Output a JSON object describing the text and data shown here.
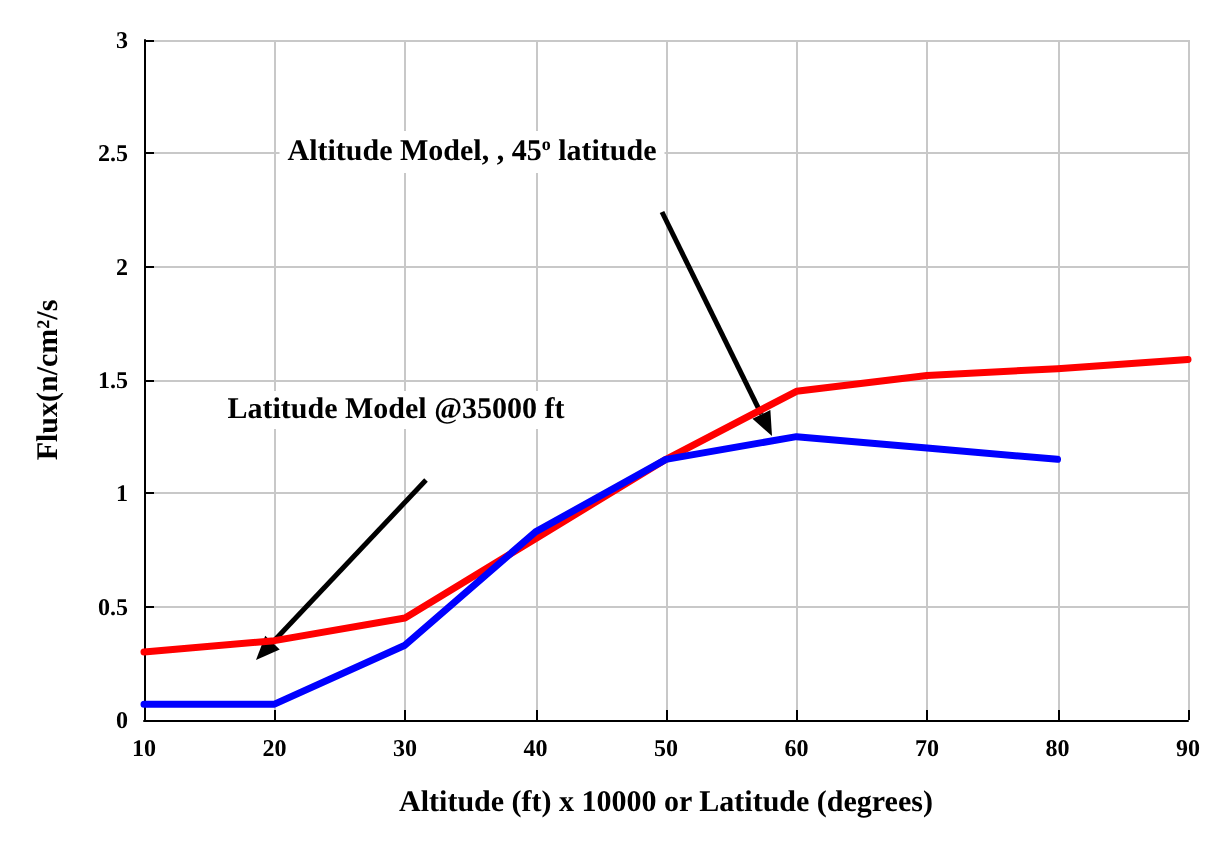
{
  "chart_data": {
    "type": "line",
    "xlabel": "Altitude (ft) x 10000 or Latitude (degrees)",
    "ylabel": "Flux(n/cm²/s",
    "series": [
      {
        "color": "#ff0000",
        "x": [
          10,
          20,
          30,
          40,
          50,
          60,
          70,
          80,
          90
        ],
        "values": [
          0.3,
          0.35,
          0.45,
          0.8,
          1.15,
          1.45,
          1.52,
          1.55,
          1.59
        ]
      },
      {
        "color": "#0000ff",
        "x": [
          10,
          20,
          30,
          40,
          50,
          60,
          70,
          80
        ],
        "values": [
          0.07,
          0.07,
          0.33,
          0.83,
          1.15,
          1.25,
          1.2,
          1.15
        ]
      }
    ],
    "annotations": [
      "Altitude Model, , 45$^{o}$ latitude",
      "Latitude Model @35000 ft"
    ],
    "xlim": [
      10,
      90
    ],
    "xticks": [
      10,
      20,
      30,
      40,
      50,
      60,
      70,
      80,
      90
    ],
    "ylim": [
      0,
      3
    ],
    "yticks": [
      0,
      0.5,
      1,
      1.5,
      2,
      2.5,
      3
    ],
    "grid": true,
    "marker": "none",
    "line_style": "solid"
  }
}
